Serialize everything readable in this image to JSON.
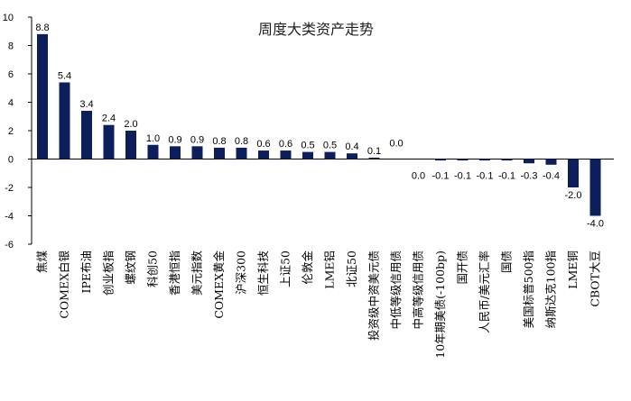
{
  "chart_data": {
    "type": "bar",
    "title": "周度大类资产走势",
    "xlabel": "",
    "ylabel": "",
    "ylim": [
      -6,
      10
    ],
    "yticks": [
      10,
      8,
      6,
      4,
      2,
      0,
      -2,
      -4,
      -6
    ],
    "grid": false,
    "legend": "none",
    "bar_color": "#0c1f5c",
    "categories": [
      "焦煤",
      "COMEX白银",
      "IPE布油",
      "创业板指",
      "螺纹钢",
      "科创50",
      "香港恒指",
      "美元指数",
      "COMEX黄金",
      "沪深300",
      "恒生科技",
      "上证50",
      "伦敦金",
      "LME铝",
      "北证50",
      "投资级中资美元债",
      "中低等级信用债",
      "中高等级信用债",
      "10年期美债(-100bp)",
      "国开债",
      "人民币/美元汇率",
      "国债",
      "美国标普500指",
      "纳斯达克100指",
      "LME铜",
      "CBOT大豆"
    ],
    "values": [
      8.8,
      5.4,
      3.4,
      2.4,
      2.0,
      1.0,
      0.9,
      0.9,
      0.8,
      0.8,
      0.6,
      0.6,
      0.5,
      0.5,
      0.4,
      0.1,
      0.0,
      0.0,
      -0.1,
      -0.1,
      -0.1,
      -0.1,
      -0.3,
      -0.4,
      -2.0,
      -4.0
    ],
    "labels": [
      "8.8",
      "5.4",
      "3.4",
      "2.4",
      "2.0",
      "1.0",
      "0.9",
      "0.9",
      "0.8",
      "0.8",
      "0.6",
      "0.6",
      "0.5",
      "0.5",
      "0.4",
      "0.1",
      "0.0",
      "0.0",
      "-0.1",
      "-0.1",
      "-0.1",
      "-0.1",
      "-0.3",
      "-0.4",
      "-2.0",
      "-4.0"
    ]
  }
}
